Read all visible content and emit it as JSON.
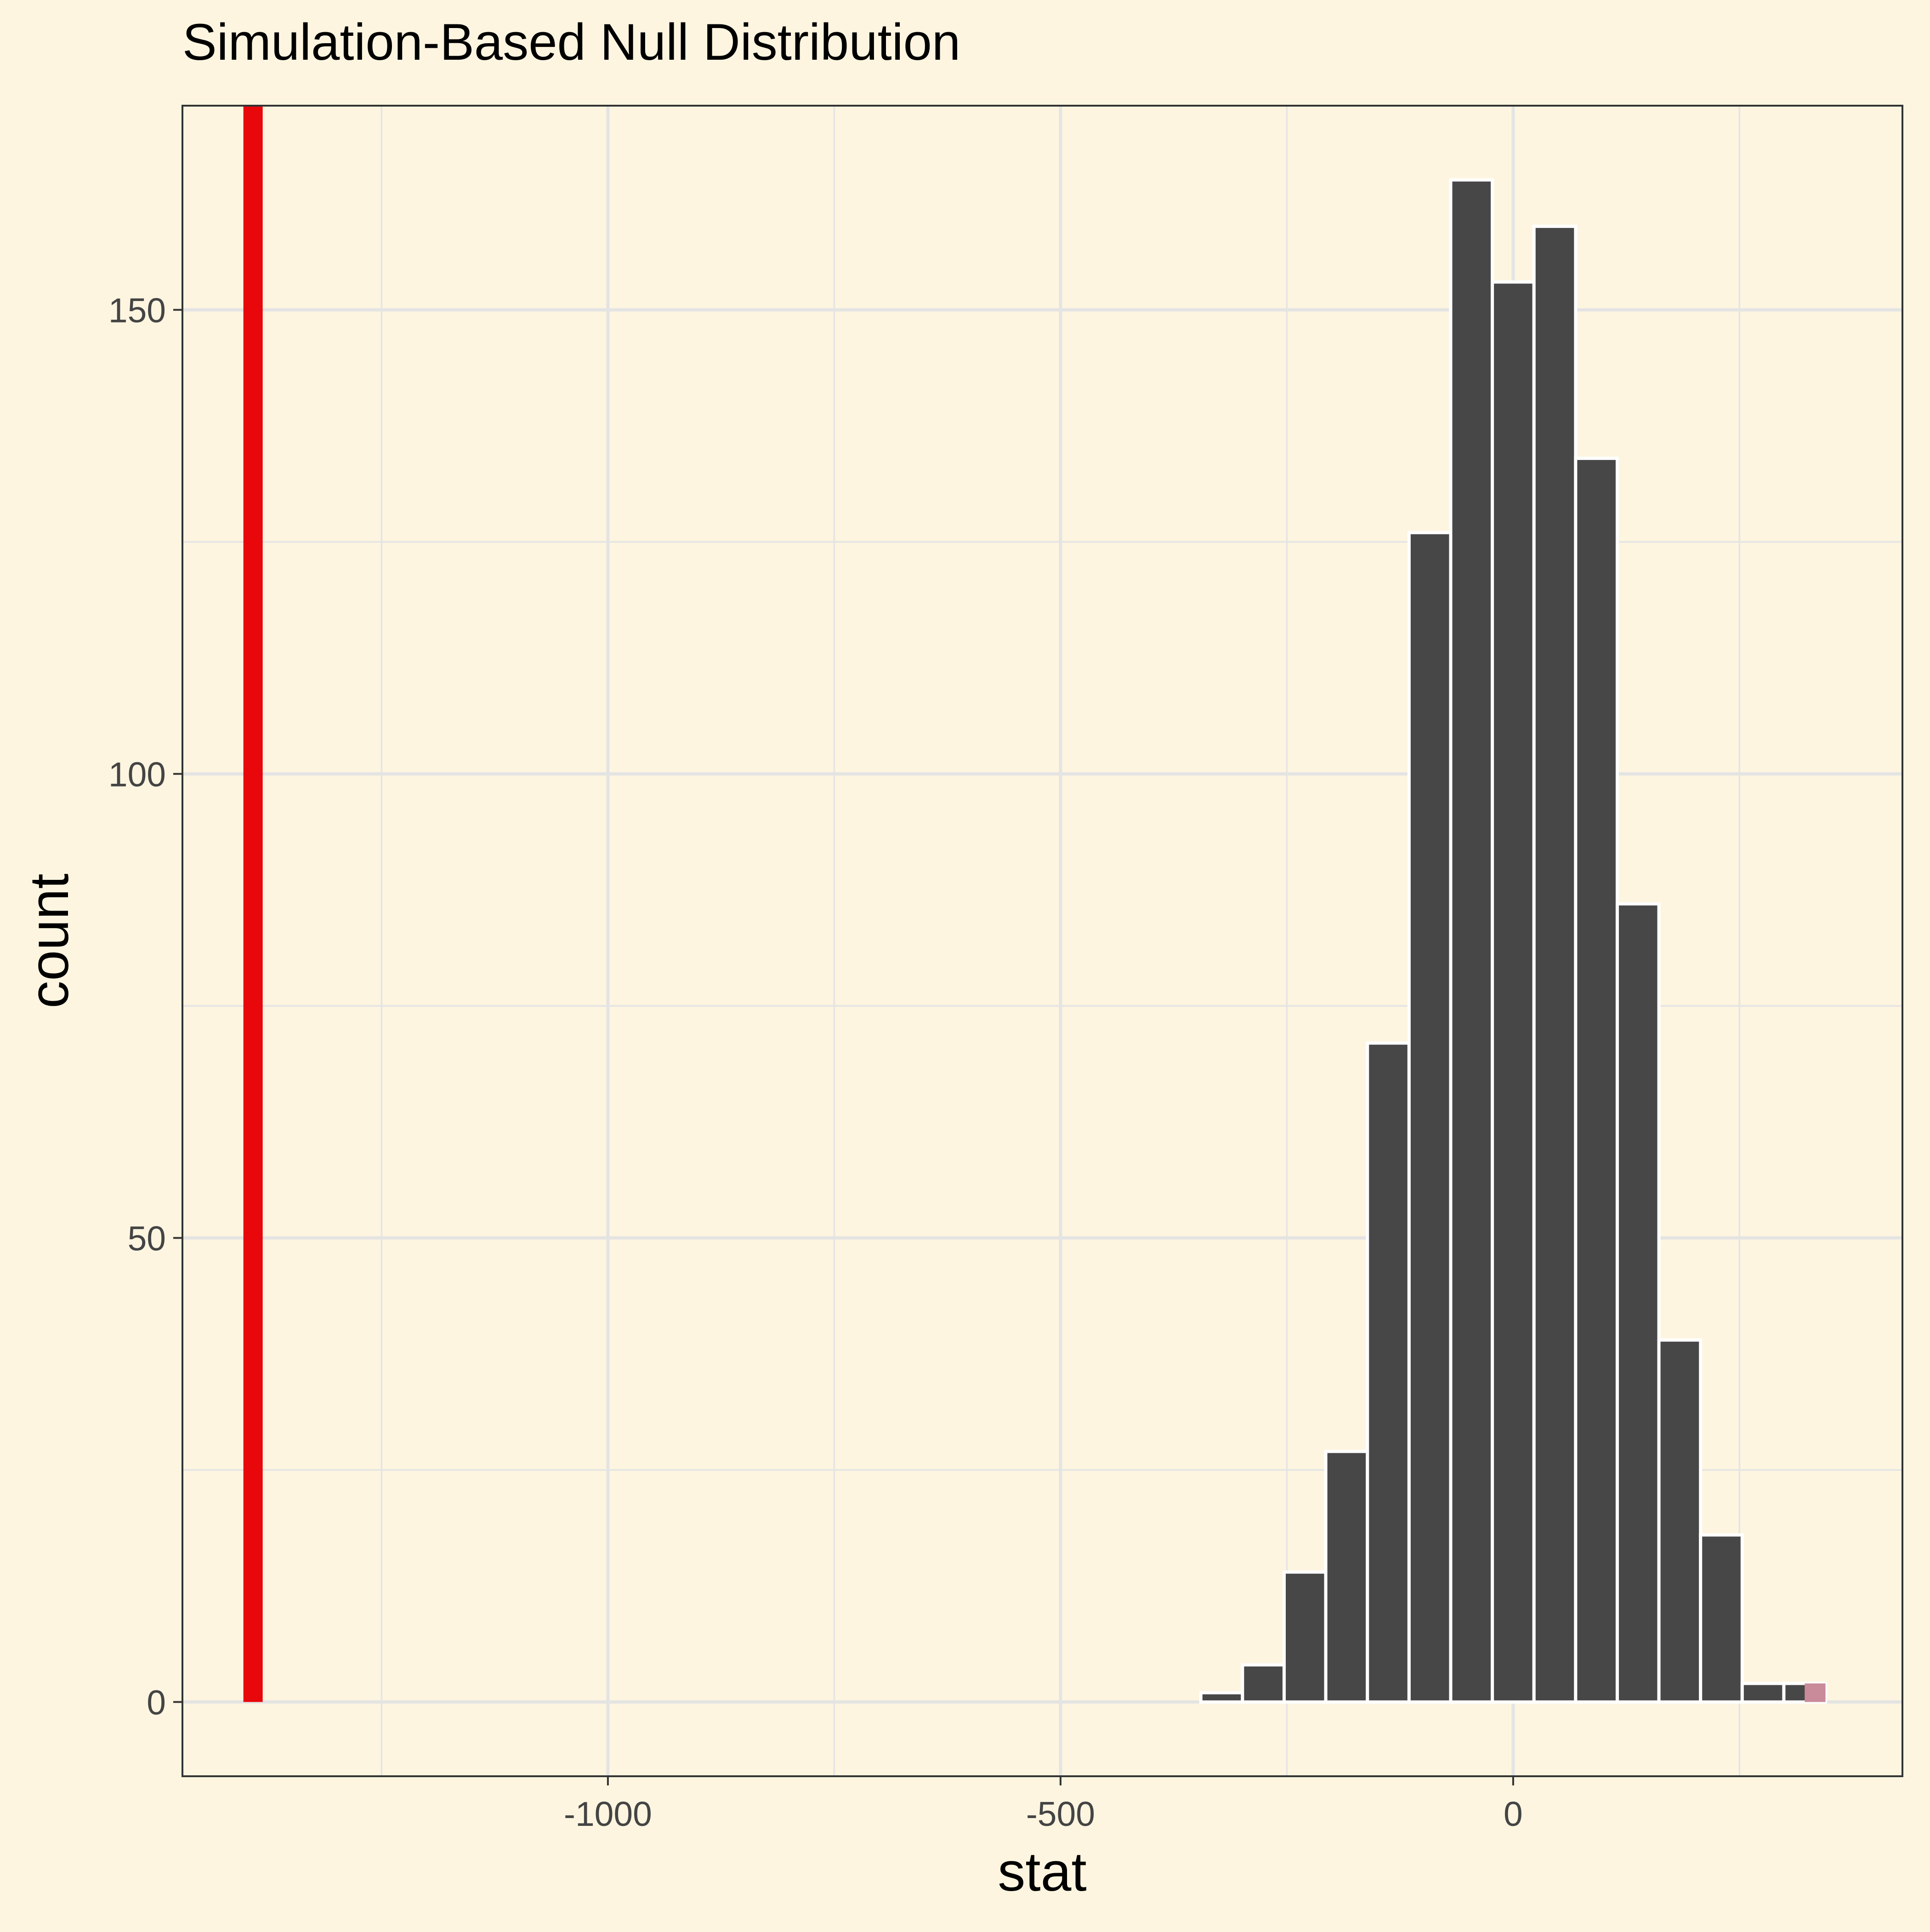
{
  "chart_data": {
    "type": "bar",
    "title": "Simulation-Based Null Distribution",
    "xlabel": "stat",
    "ylabel": "count",
    "xlim": [
      -1470,
      430
    ],
    "ylim": [
      -8,
      172
    ],
    "x_ticks": [
      {
        "value": -1000,
        "label": "-1000"
      },
      {
        "value": -500,
        "label": "-500"
      },
      {
        "value": 0,
        "label": "0"
      }
    ],
    "y_ticks": [
      {
        "value": 0,
        "label": "0"
      },
      {
        "value": 50,
        "label": "50"
      },
      {
        "value": 100,
        "label": "100"
      },
      {
        "value": 150,
        "label": "150"
      }
    ],
    "grid": true,
    "bin_width": 46,
    "bins": [
      {
        "x": -322,
        "count": 1
      },
      {
        "x": -276,
        "count": 4
      },
      {
        "x": -230,
        "count": 14
      },
      {
        "x": -184,
        "count": 27
      },
      {
        "x": -138,
        "count": 71
      },
      {
        "x": -92,
        "count": 126
      },
      {
        "x": -46,
        "count": 164
      },
      {
        "x": 0,
        "count": 153
      },
      {
        "x": 46,
        "count": 159
      },
      {
        "x": 92,
        "count": 134
      },
      {
        "x": 138,
        "count": 86
      },
      {
        "x": 184,
        "count": 39
      },
      {
        "x": 230,
        "count": 18
      },
      {
        "x": 276,
        "count": 2
      },
      {
        "x": 322,
        "count": 2,
        "shaded": true
      }
    ],
    "observed_stat": -1392,
    "colors": {
      "background": "#fdf5e0",
      "bar_fill": "#474747",
      "bar_outline": "#ffffff",
      "shade_fill": "#c98a9a",
      "observed_line": "#e8070b",
      "grid": "#e4e4e4",
      "axis_text": "#444444"
    }
  }
}
